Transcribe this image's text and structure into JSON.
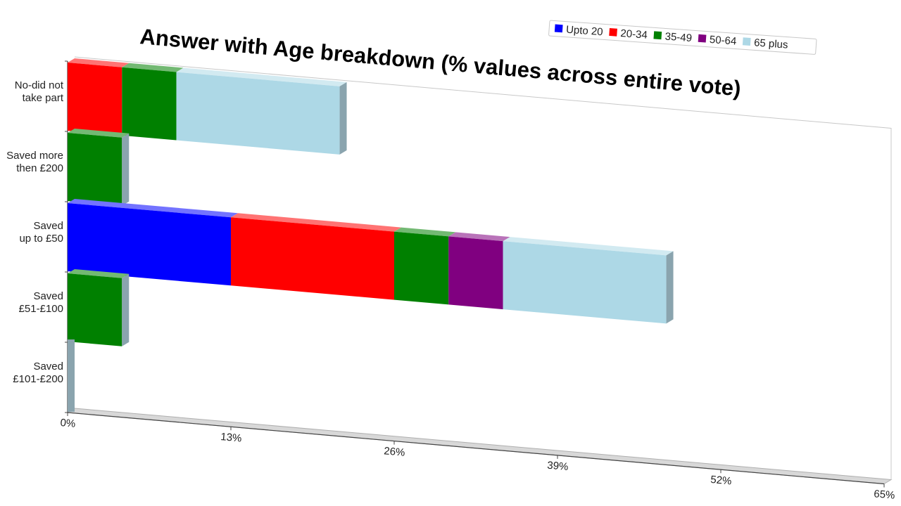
{
  "chart_data": {
    "type": "bar",
    "orientation": "horizontal",
    "stacked": true,
    "title": "Answer with Age breakdown (% values across entire vote)",
    "xlabel": "",
    "ylabel": "",
    "xlim": [
      0,
      65
    ],
    "x_ticks": [
      "0%",
      "13%",
      "26%",
      "39%",
      "52%",
      "65%"
    ],
    "categories": [
      [
        "No-did not",
        "take part"
      ],
      [
        "Saved more",
        "then £200"
      ],
      [
        "Saved",
        "up to £50"
      ],
      [
        "Saved",
        "£51-£100"
      ],
      [
        "Saved",
        "£101-£200"
      ]
    ],
    "series": [
      {
        "name": "Upto 20",
        "color": "#0000ff",
        "values": [
          0,
          0,
          13,
          0,
          0
        ]
      },
      {
        "name": "20-34",
        "color": "#ff0000",
        "values": [
          4.33,
          0,
          13,
          0,
          0
        ]
      },
      {
        "name": "35-49",
        "color": "#008000",
        "values": [
          4.33,
          4.33,
          4.33,
          4.33,
          0
        ]
      },
      {
        "name": "50-64",
        "color": "#800080",
        "values": [
          0,
          0,
          4.33,
          0,
          0
        ]
      },
      {
        "name": "65 plus",
        "color": "#add8e6",
        "values": [
          13,
          0,
          13,
          0,
          0
        ]
      }
    ],
    "legend_position": "top-right",
    "grid": false
  }
}
